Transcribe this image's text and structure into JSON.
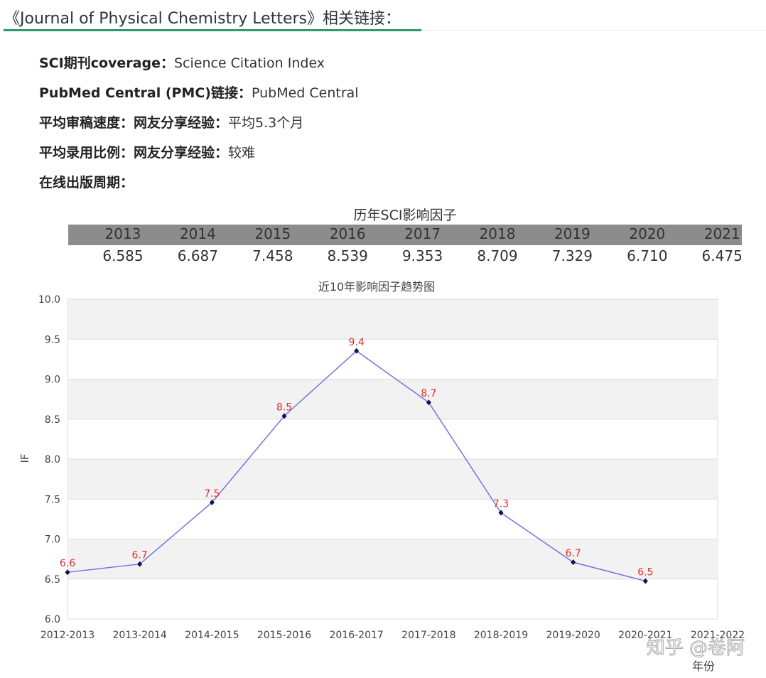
{
  "header": {
    "title": "《Journal of Physical Chemistry Letters》相关链接："
  },
  "info": [
    {
      "label": "SCI期刊coverage：",
      "value": "Science Citation Index"
    },
    {
      "label": "PubMed Central (PMC)链接：",
      "value": "PubMed Central"
    },
    {
      "label": "平均审稿速度：网友分享经验：",
      "value": "平均5.3个月"
    },
    {
      "label": "平均录用比例：网友分享经验：",
      "value": "较难"
    },
    {
      "label": "在线出版周期：",
      "value": null
    }
  ],
  "table": {
    "title": "历年SCI影响因子",
    "years": [
      "2013",
      "2014",
      "2015",
      "2016",
      "2017",
      "2018",
      "2019",
      "2020",
      "2021"
    ],
    "values": [
      "6.585",
      "6.687",
      "7.458",
      "8.539",
      "9.353",
      "8.709",
      "7.329",
      "6.710",
      "6.475"
    ]
  },
  "chart_data": {
    "type": "line",
    "title": "近10年影响因子趋势图",
    "x_label": "年份",
    "y_label": "IF",
    "categories": [
      "2012-2013",
      "2013-2014",
      "2014-2015",
      "2015-2016",
      "2016-2017",
      "2017-2018",
      "2018-2019",
      "2019-2020",
      "2020-2021",
      "2021-2022"
    ],
    "series": [
      {
        "name": "IF",
        "color": "#7474e0",
        "marker_color": "#101050",
        "values": [
          6.585,
          6.687,
          7.458,
          8.539,
          9.353,
          8.709,
          7.329,
          6.71,
          6.475,
          null
        ],
        "value_labels": [
          "6.6",
          "6.7",
          "7.5",
          "8.5",
          "9.4",
          "8.7",
          "7.3",
          "6.7",
          "6.5",
          null
        ]
      }
    ],
    "value_label_color": "#e03030",
    "ylim": [
      6,
      10
    ],
    "yticks": [
      {
        "value": 6,
        "label": "6.0"
      },
      6.5,
      {
        "value": 7,
        "label": "7.0"
      },
      7.5,
      {
        "value": 8,
        "label": "8.0"
      },
      8.5,
      {
        "value": 9,
        "label": "9.0"
      },
      9.5,
      {
        "value": 10,
        "label": "10.0"
      }
    ],
    "grid": true
  },
  "watermark": "知乎 @卷阿"
}
